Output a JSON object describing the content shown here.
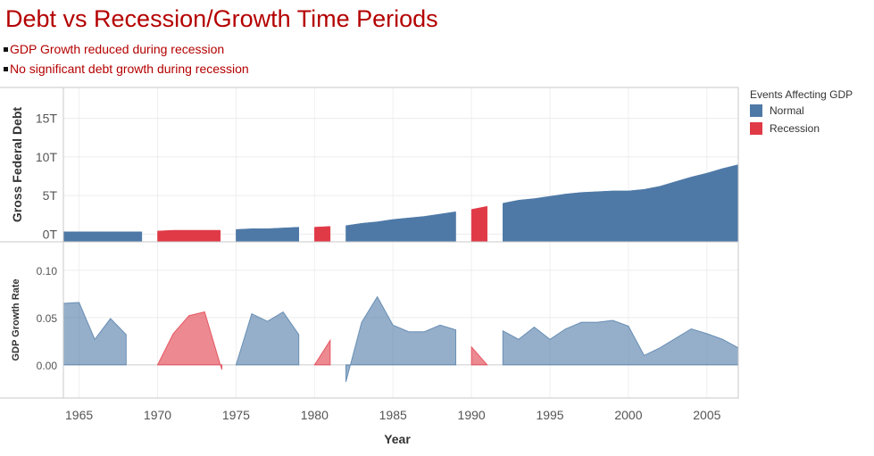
{
  "title": "Debt vs Recession/Growth Time Periods",
  "bullets": [
    "GDP Growth  reduced during  recession",
    "No significant debt growth during recession"
  ],
  "legend": {
    "title": "Events Affecting GDP",
    "items": [
      {
        "label": "Normal",
        "color": "#4e79a7"
      },
      {
        "label": "Recession",
        "color": "#e03a47"
      }
    ]
  },
  "chart_data": {
    "type": "area",
    "xlabel": "Year",
    "x_ticks": [
      1965,
      1970,
      1975,
      1980,
      1985,
      1990,
      1995,
      2000,
      2005
    ],
    "xlim": [
      1964,
      2007
    ],
    "panels": [
      {
        "ylabel": "Gross Federal Debt",
        "ylim": [
          -1,
          19
        ],
        "y_ticks": [
          0,
          5,
          10,
          15
        ],
        "y_tick_labels": [
          "0T",
          "5T",
          "10T",
          "15T"
        ],
        "segments": [
          {
            "event": "Normal",
            "points": [
              [
                1964,
                0.3
              ],
              [
                1965,
                0.3
              ],
              [
                1966,
                0.3
              ],
              [
                1967,
                0.3
              ],
              [
                1968,
                0.3
              ],
              [
                1969,
                0.3
              ]
            ]
          },
          {
            "event": "Recession",
            "points": [
              [
                1970,
                0.4
              ],
              [
                1971,
                0.5
              ],
              [
                1972,
                0.5
              ],
              [
                1973,
                0.5
              ],
              [
                1974,
                0.5
              ]
            ]
          },
          {
            "event": "Normal",
            "points": [
              [
                1975,
                0.6
              ],
              [
                1976,
                0.7
              ],
              [
                1977,
                0.7
              ],
              [
                1978,
                0.8
              ],
              [
                1979,
                0.9
              ]
            ]
          },
          {
            "event": "Recession",
            "points": [
              [
                1980,
                0.9
              ],
              [
                1981,
                1.0
              ]
            ]
          },
          {
            "event": "Normal",
            "points": [
              [
                1982,
                1.1
              ],
              [
                1983,
                1.4
              ],
              [
                1984,
                1.6
              ],
              [
                1985,
                1.9
              ],
              [
                1986,
                2.1
              ],
              [
                1987,
                2.3
              ],
              [
                1988,
                2.6
              ],
              [
                1989,
                2.9
              ]
            ]
          },
          {
            "event": "Recession",
            "points": [
              [
                1990,
                3.2
              ],
              [
                1991,
                3.6
              ]
            ]
          },
          {
            "event": "Normal",
            "points": [
              [
                1992,
                4.0
              ],
              [
                1993,
                4.4
              ],
              [
                1994,
                4.6
              ],
              [
                1995,
                4.9
              ],
              [
                1996,
                5.2
              ],
              [
                1997,
                5.4
              ],
              [
                1998,
                5.5
              ],
              [
                1999,
                5.6
              ],
              [
                2000,
                5.6
              ],
              [
                2001,
                5.8
              ],
              [
                2002,
                6.2
              ],
              [
                2003,
                6.8
              ],
              [
                2004,
                7.4
              ],
              [
                2005,
                7.9
              ],
              [
                2006,
                8.5
              ],
              [
                2007,
                9.0
              ]
            ]
          }
        ]
      },
      {
        "ylabel": "GDP Growth Rate",
        "ylim": [
          -0.035,
          0.13
        ],
        "y_ticks": [
          0.0,
          0.05,
          0.1
        ],
        "y_tick_labels": [
          "0.00",
          "0.05",
          "0.10"
        ],
        "segments": [
          {
            "event": "Normal",
            "points": [
              [
                1964,
                0.065
              ],
              [
                1965,
                0.066
              ],
              [
                1966,
                0.027
              ],
              [
                1967,
                0.049
              ],
              [
                1968,
                0.032
              ]
            ]
          },
          {
            "event": "Recession",
            "points": [
              [
                1970,
                0.0
              ],
              [
                1971,
                0.033
              ],
              [
                1972,
                0.052
              ],
              [
                1973,
                0.056
              ],
              [
                1974,
                0.0
              ],
              [
                1974.1,
                -0.005
              ]
            ]
          },
          {
            "event": "Normal",
            "points": [
              [
                1975,
                0.0
              ],
              [
                1976,
                0.054
              ],
              [
                1977,
                0.046
              ],
              [
                1978,
                0.056
              ],
              [
                1979,
                0.032
              ]
            ]
          },
          {
            "event": "Recession",
            "points": [
              [
                1980,
                0.0
              ],
              [
                1981,
                0.026
              ]
            ]
          },
          {
            "event": "Normal",
            "points": [
              [
                1982,
                -0.018
              ],
              [
                1983,
                0.045
              ],
              [
                1984,
                0.072
              ],
              [
                1985,
                0.042
              ],
              [
                1986,
                0.035
              ],
              [
                1987,
                0.035
              ],
              [
                1988,
                0.042
              ],
              [
                1989,
                0.037
              ]
            ]
          },
          {
            "event": "Recession",
            "points": [
              [
                1990,
                0.019
              ],
              [
                1991,
                0.0
              ]
            ]
          },
          {
            "event": "Normal",
            "points": [
              [
                1992,
                0.036
              ],
              [
                1993,
                0.027
              ],
              [
                1994,
                0.04
              ],
              [
                1995,
                0.027
              ],
              [
                1996,
                0.038
              ],
              [
                1997,
                0.045
              ],
              [
                1998,
                0.045
              ],
              [
                1999,
                0.047
              ],
              [
                2000,
                0.041
              ],
              [
                2001,
                0.01
              ],
              [
                2002,
                0.018
              ],
              [
                2003,
                0.028
              ],
              [
                2004,
                0.038
              ],
              [
                2005,
                0.033
              ],
              [
                2006,
                0.027
              ],
              [
                2007,
                0.018
              ]
            ]
          }
        ]
      }
    ]
  }
}
